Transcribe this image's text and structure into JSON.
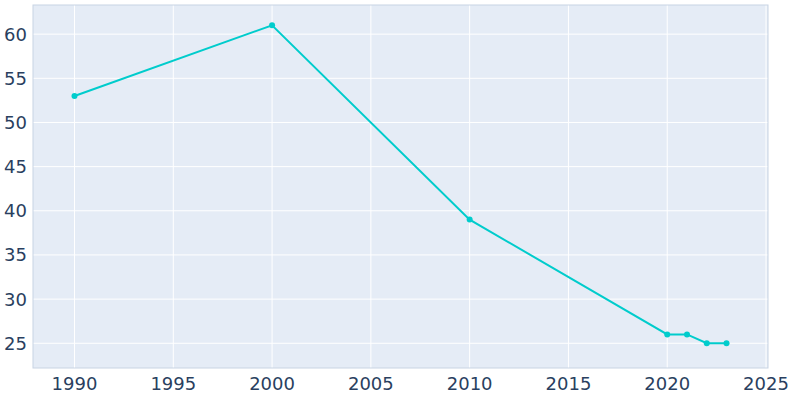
{
  "chart_data": {
    "type": "line",
    "x": [
      1990,
      2000,
      2010,
      2020,
      2021,
      2022,
      2023
    ],
    "values": [
      53,
      61,
      39,
      26,
      26,
      25,
      25
    ],
    "color": "#00cccc",
    "marker": "circle",
    "xlim": [
      1987.9,
      2025.1
    ],
    "xticks": [
      1990,
      1995,
      2000,
      2005,
      2010,
      2015,
      2020,
      2025
    ],
    "ylim": [
      22.2,
      63.3
    ],
    "yticks": [
      25,
      30,
      35,
      40,
      45,
      50,
      55,
      60
    ],
    "grid": true
  }
}
